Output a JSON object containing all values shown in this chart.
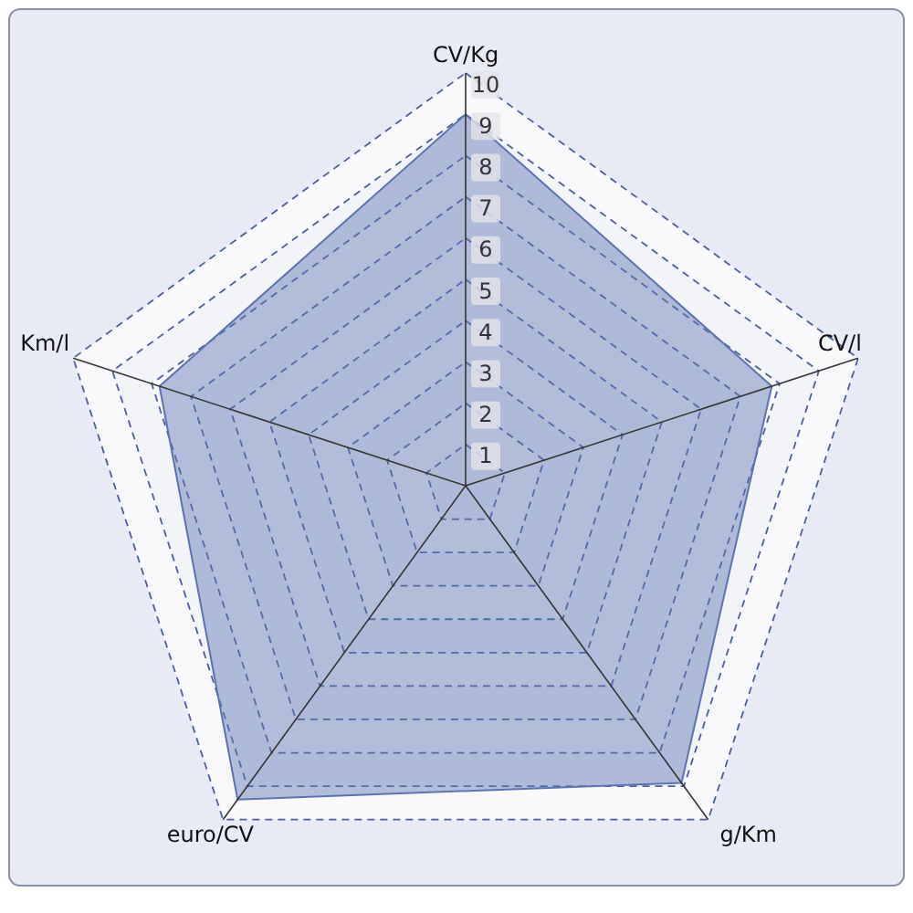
{
  "chart_data": {
    "type": "radar",
    "categories": [
      "CV/Kg",
      "CV/l",
      "g/Km",
      "euro/CV",
      "Km/l"
    ],
    "series": [
      {
        "color": "#5b73b3",
        "values": [
          9.0,
          7.8,
          8.9,
          9.4,
          7.8
        ]
      }
    ],
    "ylim": [
      0,
      10
    ],
    "yticks": [
      1,
      2,
      3,
      4,
      5,
      6,
      7,
      8,
      9,
      10
    ],
    "grid": true,
    "line_style": "dashed"
  }
}
